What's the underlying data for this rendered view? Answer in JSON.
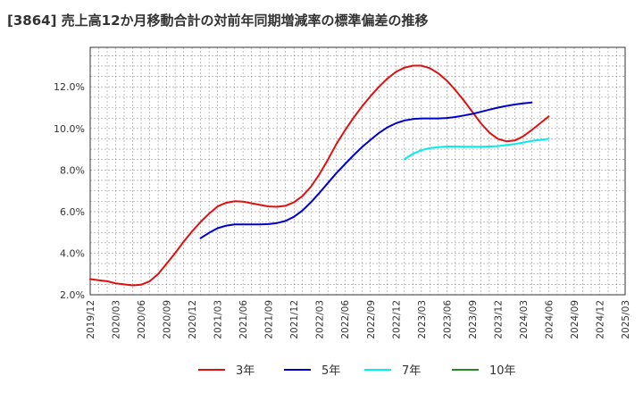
{
  "chart_data": {
    "type": "line",
    "title": "[3864]  売上高12か月移動合計の対前年同期増減率の標準偏差の推移",
    "xlabel": "",
    "ylabel": "",
    "x_ticks": [
      "2019/12",
      "2020/03",
      "2020/06",
      "2020/09",
      "2020/12",
      "2021/03",
      "2021/06",
      "2021/09",
      "2021/12",
      "2022/03",
      "2022/06",
      "2022/09",
      "2022/12",
      "2023/03",
      "2023/06",
      "2023/09",
      "2023/12",
      "2024/03",
      "2024/06",
      "2024/09",
      "2024/12",
      "2025/03"
    ],
    "y_ticks": [
      "2.0%",
      "4.0%",
      "6.0%",
      "8.0%",
      "10.0%",
      "12.0%"
    ],
    "ylim": [
      2.0,
      13.9
    ],
    "grid": true,
    "legend_position": "bottom",
    "series": [
      {
        "name": "3年",
        "color": "#dd1111",
        "points": [
          [
            "2019/12",
            2.75
          ],
          [
            "2020/01",
            2.7
          ],
          [
            "2020/02",
            2.65
          ],
          [
            "2020/03",
            2.55
          ],
          [
            "2020/04",
            2.5
          ],
          [
            "2020/05",
            2.45
          ],
          [
            "2020/06",
            2.48
          ],
          [
            "2020/07",
            2.65
          ],
          [
            "2020/08",
            3.0
          ],
          [
            "2020/09",
            3.5
          ],
          [
            "2020/10",
            4.0
          ],
          [
            "2020/11",
            4.55
          ],
          [
            "2020/12",
            5.05
          ],
          [
            "2021/01",
            5.5
          ],
          [
            "2021/02",
            5.9
          ],
          [
            "2021/03",
            6.25
          ],
          [
            "2021/04",
            6.42
          ],
          [
            "2021/05",
            6.5
          ],
          [
            "2021/06",
            6.48
          ],
          [
            "2021/07",
            6.4
          ],
          [
            "2021/08",
            6.32
          ],
          [
            "2021/09",
            6.25
          ],
          [
            "2021/10",
            6.23
          ],
          [
            "2021/11",
            6.28
          ],
          [
            "2021/12",
            6.45
          ],
          [
            "2022/01",
            6.75
          ],
          [
            "2022/02",
            7.2
          ],
          [
            "2022/03",
            7.8
          ],
          [
            "2022/04",
            8.5
          ],
          [
            "2022/05",
            9.25
          ],
          [
            "2022/06",
            9.9
          ],
          [
            "2022/07",
            10.5
          ],
          [
            "2022/08",
            11.05
          ],
          [
            "2022/09",
            11.55
          ],
          [
            "2022/10",
            12.0
          ],
          [
            "2022/11",
            12.4
          ],
          [
            "2022/12",
            12.72
          ],
          [
            "2023/01",
            12.92
          ],
          [
            "2023/02",
            13.02
          ],
          [
            "2023/03",
            13.02
          ],
          [
            "2023/04",
            12.9
          ],
          [
            "2023/05",
            12.65
          ],
          [
            "2023/06",
            12.3
          ],
          [
            "2023/07",
            11.85
          ],
          [
            "2023/08",
            11.35
          ],
          [
            "2023/09",
            10.8
          ],
          [
            "2023/10",
            10.25
          ],
          [
            "2023/11",
            9.8
          ],
          [
            "2023/12",
            9.5
          ],
          [
            "2024/01",
            9.38
          ],
          [
            "2024/02",
            9.42
          ],
          [
            "2024/03",
            9.62
          ],
          [
            "2024/04",
            9.92
          ],
          [
            "2024/05",
            10.25
          ],
          [
            "2024/06",
            10.58
          ]
        ]
      },
      {
        "name": "5年",
        "color": "#0000cc",
        "points": [
          [
            "2021/01",
            4.72
          ],
          [
            "2021/02",
            4.98
          ],
          [
            "2021/03",
            5.2
          ],
          [
            "2021/04",
            5.32
          ],
          [
            "2021/05",
            5.38
          ],
          [
            "2021/06",
            5.38
          ],
          [
            "2021/07",
            5.38
          ],
          [
            "2021/08",
            5.38
          ],
          [
            "2021/09",
            5.4
          ],
          [
            "2021/10",
            5.45
          ],
          [
            "2021/11",
            5.55
          ],
          [
            "2021/12",
            5.75
          ],
          [
            "2022/01",
            6.05
          ],
          [
            "2022/02",
            6.45
          ],
          [
            "2022/03",
            6.9
          ],
          [
            "2022/04",
            7.38
          ],
          [
            "2022/05",
            7.85
          ],
          [
            "2022/06",
            8.28
          ],
          [
            "2022/07",
            8.7
          ],
          [
            "2022/08",
            9.1
          ],
          [
            "2022/09",
            9.45
          ],
          [
            "2022/10",
            9.78
          ],
          [
            "2022/11",
            10.05
          ],
          [
            "2022/12",
            10.25
          ],
          [
            "2023/01",
            10.38
          ],
          [
            "2023/02",
            10.45
          ],
          [
            "2023/03",
            10.48
          ],
          [
            "2023/04",
            10.48
          ],
          [
            "2023/05",
            10.48
          ],
          [
            "2023/06",
            10.5
          ],
          [
            "2023/07",
            10.55
          ],
          [
            "2023/08",
            10.62
          ],
          [
            "2023/09",
            10.7
          ],
          [
            "2023/10",
            10.8
          ],
          [
            "2023/11",
            10.9
          ],
          [
            "2023/12",
            11.0
          ],
          [
            "2024/01",
            11.08
          ],
          [
            "2024/02",
            11.15
          ],
          [
            "2024/03",
            11.2
          ],
          [
            "2024/04",
            11.25
          ]
        ]
      },
      {
        "name": "7年",
        "color": "#00eeee",
        "points": [
          [
            "2023/01",
            8.52
          ],
          [
            "2023/02",
            8.78
          ],
          [
            "2023/03",
            8.95
          ],
          [
            "2023/04",
            9.05
          ],
          [
            "2023/05",
            9.1
          ],
          [
            "2023/06",
            9.13
          ],
          [
            "2023/07",
            9.13
          ],
          [
            "2023/08",
            9.12
          ],
          [
            "2023/09",
            9.12
          ],
          [
            "2023/10",
            9.12
          ],
          [
            "2023/11",
            9.13
          ],
          [
            "2023/12",
            9.15
          ],
          [
            "2024/01",
            9.2
          ],
          [
            "2024/02",
            9.25
          ],
          [
            "2024/03",
            9.32
          ],
          [
            "2024/04",
            9.4
          ],
          [
            "2024/05",
            9.45
          ],
          [
            "2024/06",
            9.5
          ]
        ]
      },
      {
        "name": "10年",
        "color": "#228b22",
        "points": []
      }
    ]
  }
}
